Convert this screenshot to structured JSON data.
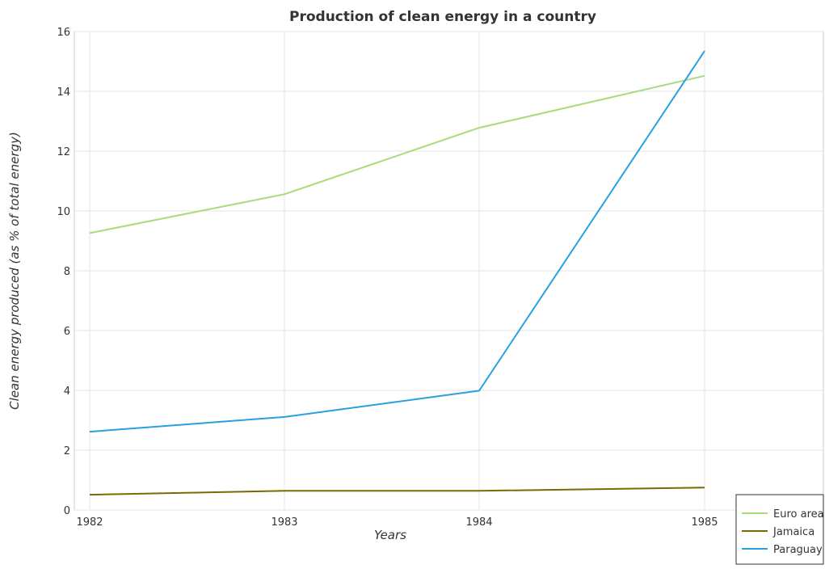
{
  "chart_data": {
    "type": "line",
    "title": "Production of clean energy in a country",
    "xlabel": "Years",
    "ylabel": "Clean energy produced (as % of total energy)",
    "x": [
      "1982",
      "1983",
      "1984",
      "1985"
    ],
    "ylim": [
      0,
      16
    ],
    "yticks": [
      0,
      2,
      4,
      6,
      8,
      10,
      12,
      14,
      16
    ],
    "grid": true,
    "legend_position": "bottom-right",
    "series": [
      {
        "name": "Euro area",
        "color": "#a6dc7a",
        "values": [
          9.26,
          10.56,
          12.78,
          14.52
        ]
      },
      {
        "name": "Jamaica",
        "color": "#7a6a00",
        "values": [
          0.51,
          0.64,
          0.64,
          0.75
        ]
      },
      {
        "name": "Paraguay",
        "color": "#29a0e0",
        "values": [
          2.62,
          3.11,
          3.99,
          15.35
        ]
      }
    ]
  }
}
